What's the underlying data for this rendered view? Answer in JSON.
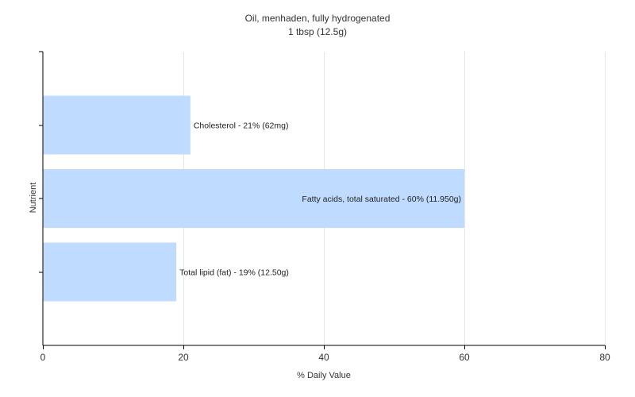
{
  "chart_data": {
    "type": "bar",
    "orientation": "horizontal",
    "title": "Oil, menhaden, fully hydrogenated",
    "subtitle": "1 tbsp (12.5g)",
    "xlabel": "% Daily Value",
    "ylabel": "Nutrient",
    "xlim": [
      0,
      80
    ],
    "xticks": [
      0,
      20,
      40,
      60,
      80
    ],
    "grid": true,
    "bar_color": "#bfdbff",
    "bars": [
      {
        "name": "Cholesterol",
        "value": 21,
        "label": "Cholesterol - 21% (62mg)"
      },
      {
        "name": "Fatty acids, total saturated",
        "value": 60,
        "label": "Fatty acids, total saturated - 60% (11.950g)"
      },
      {
        "name": "Total lipid (fat)",
        "value": 19,
        "label": "Total lipid (fat) - 19% (12.50g)"
      }
    ]
  }
}
